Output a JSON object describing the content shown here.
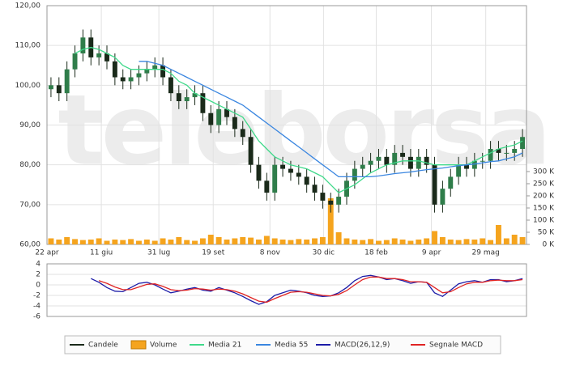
{
  "chart_data": [
    {
      "type": "candlestick",
      "watermark": "teleborsa",
      "xlim": [
        0,
        60
      ],
      "xticks": [
        {
          "value": 0,
          "label": "22 apr"
        },
        {
          "value": 6.8,
          "label": "11 giu"
        },
        {
          "value": 14,
          "label": "31 lug"
        },
        {
          "value": 20.8,
          "label": "19 set"
        },
        {
          "value": 27.9,
          "label": "8 nov"
        },
        {
          "value": 34.6,
          "label": "30 dic"
        },
        {
          "value": 41.2,
          "label": "18 feb"
        },
        {
          "value": 48.1,
          "label": "9 apr"
        },
        {
          "value": 54.9,
          "label": "29 mag"
        }
      ],
      "ylim": [
        60,
        120
      ],
      "yticks": [
        {
          "value": 60,
          "label": "60,00"
        },
        {
          "value": 70,
          "label": "70,00"
        },
        {
          "value": 80,
          "label": "80,00"
        },
        {
          "value": 90,
          "label": "90,00"
        },
        {
          "value": 100,
          "label": "100,00"
        },
        {
          "value": 110,
          "label": "110,00"
        },
        {
          "value": 120,
          "label": "120,00"
        }
      ],
      "y2lim": [
        0,
        983
      ],
      "y2ticks": [
        {
          "value": 0,
          "label": "0 K"
        },
        {
          "value": 50,
          "label": "50 K"
        },
        {
          "value": 100,
          "label": "100 K"
        },
        {
          "value": 150,
          "label": "150 K"
        },
        {
          "value": 200,
          "label": "200 K"
        },
        {
          "value": 250,
          "label": "250 K"
        },
        {
          "value": 300,
          "label": "300 K"
        }
      ],
      "grid": true,
      "series": [
        {
          "name": "Candele",
          "type": "candlestick",
          "color": "#1a2a1a",
          "open": [
            99,
            100,
            98,
            104,
            108,
            112,
            107,
            108,
            106,
            102,
            101,
            102,
            103,
            104,
            105,
            102,
            98,
            96,
            97,
            98,
            93,
            90,
            94,
            92,
            89,
            87,
            80,
            76,
            73,
            80,
            79,
            78,
            77,
            75,
            73,
            71,
            70,
            72,
            76,
            79,
            80,
            81,
            82,
            80,
            83,
            82,
            79,
            82,
            80,
            70,
            74,
            77,
            80,
            79,
            81,
            81,
            84,
            83,
            83,
            84
          ],
          "high": [
            102,
            102,
            106,
            110,
            114,
            114,
            110,
            110,
            108,
            104,
            104,
            105,
            106,
            107,
            107,
            104,
            100,
            99,
            100,
            100,
            95,
            96,
            96,
            94,
            91,
            89,
            82,
            78,
            82,
            82,
            81,
            80,
            79,
            77,
            75,
            73,
            74,
            78,
            81,
            82,
            83,
            84,
            84,
            85,
            85,
            84,
            84,
            84,
            82,
            76,
            79,
            82,
            82,
            83,
            83,
            86,
            86,
            85,
            86,
            89
          ],
          "low": [
            97,
            96,
            96,
            102,
            106,
            105,
            105,
            104,
            100,
            99,
            99,
            100,
            101,
            102,
            100,
            96,
            94,
            94,
            95,
            91,
            88,
            88,
            90,
            87,
            85,
            78,
            74,
            71,
            71,
            77,
            76,
            75,
            73,
            71,
            69,
            68,
            68,
            70,
            74,
            77,
            78,
            79,
            78,
            78,
            80,
            77,
            77,
            78,
            68,
            68,
            72,
            75,
            77,
            77,
            79,
            79,
            81,
            81,
            81,
            82
          ],
          "close": [
            100,
            98,
            104,
            108,
            112,
            107,
            108,
            106,
            102,
            101,
            102,
            103,
            104,
            105,
            102,
            98,
            96,
            97,
            98,
            93,
            90,
            94,
            92,
            89,
            87,
            80,
            76,
            73,
            80,
            79,
            78,
            77,
            75,
            73,
            71,
            70,
            72,
            76,
            79,
            80,
            81,
            82,
            80,
            83,
            82,
            79,
            82,
            80,
            70,
            74,
            77,
            80,
            79,
            81,
            81,
            84,
            83,
            83,
            84,
            87
          ]
        },
        {
          "name": "Volume",
          "type": "bar",
          "axis": "y2",
          "color": "#f5a41e",
          "values": [
            25,
            20,
            30,
            22,
            18,
            20,
            25,
            15,
            20,
            18,
            22,
            15,
            20,
            15,
            25,
            20,
            30,
            18,
            15,
            25,
            40,
            30,
            20,
            25,
            30,
            28,
            20,
            35,
            25,
            20,
            18,
            22,
            20,
            25,
            30,
            190,
            50,
            25,
            20,
            18,
            22,
            15,
            18,
            25,
            20,
            15,
            20,
            25,
            55,
            30,
            20,
            18,
            22,
            20,
            25,
            18,
            80,
            25,
            40,
            30
          ]
        },
        {
          "name": "Media 21",
          "type": "line",
          "color": "#3fd98a",
          "values": [
            null,
            null,
            null,
            108,
            109,
            109.5,
            109,
            108,
            107,
            105,
            104,
            104,
            104,
            104,
            104,
            103,
            101,
            100,
            98,
            97,
            96,
            95,
            94,
            93,
            92,
            89,
            86,
            84,
            82,
            81,
            80,
            79.5,
            79,
            78,
            77,
            75,
            73,
            74,
            75,
            76.5,
            78,
            79,
            80,
            80.5,
            81,
            81,
            81,
            80.5,
            80,
            80,
            80,
            80,
            80,
            81,
            82,
            83,
            84,
            84.5,
            85,
            86
          ]
        },
        {
          "name": "Media 55",
          "type": "line",
          "color": "#3a86e0",
          "values": [
            null,
            null,
            null,
            null,
            null,
            null,
            null,
            null,
            null,
            null,
            null,
            106,
            106,
            105.5,
            105,
            104,
            103,
            102,
            101,
            100,
            99,
            98,
            97,
            96,
            95,
            93.5,
            92,
            90.5,
            89,
            87.5,
            86,
            84.5,
            83,
            81.5,
            80,
            78.5,
            77,
            77,
            77,
            77,
            77,
            77.2,
            77.5,
            77.8,
            78,
            78.2,
            78.5,
            78.8,
            79,
            79.2,
            79.5,
            79.8,
            80,
            80.2,
            80.5,
            80.8,
            81,
            81.5,
            82,
            83
          ]
        }
      ]
    },
    {
      "type": "line",
      "xlim": [
        0,
        60
      ],
      "ylim": [
        -6,
        4
      ],
      "yticks": [
        4,
        2,
        0,
        -2,
        -4,
        -6
      ],
      "grid": true,
      "series": [
        {
          "name": "MACD(26,12,9)",
          "type": "line",
          "color": "#1c1ca8",
          "values": [
            null,
            null,
            null,
            null,
            null,
            1.2,
            0.5,
            -0.5,
            -1.2,
            -1.3,
            -0.5,
            0.3,
            0.5,
            0,
            -0.8,
            -1.5,
            -1.2,
            -0.8,
            -0.5,
            -1,
            -1.2,
            -0.5,
            -1,
            -1.5,
            -2.2,
            -3,
            -3.7,
            -3.2,
            -2,
            -1.5,
            -1,
            -1.2,
            -1.5,
            -2,
            -2.2,
            -2.1,
            -1.5,
            -0.5,
            0.8,
            1.6,
            1.8,
            1.5,
            1,
            1.2,
            0.8,
            0.3,
            0.6,
            0.5,
            -1.5,
            -2.2,
            -1,
            0.2,
            0.6,
            0.8,
            0.5,
            1,
            1,
            0.6,
            0.8,
            1.2
          ]
        },
        {
          "name": "Segnale MACD",
          "type": "line",
          "color": "#e02424",
          "values": [
            null,
            null,
            null,
            null,
            null,
            null,
            0.8,
            0.3,
            -0.4,
            -0.9,
            -0.9,
            -0.4,
            0.1,
            0.2,
            -0.3,
            -0.9,
            -1.1,
            -1,
            -0.7,
            -0.8,
            -1,
            -0.8,
            -0.9,
            -1.2,
            -1.7,
            -2.4,
            -3.1,
            -3.3,
            -2.6,
            -2,
            -1.4,
            -1.3,
            -1.4,
            -1.7,
            -2,
            -2.1,
            -1.8,
            -1.1,
            0,
            1,
            1.5,
            1.5,
            1.2,
            1.2,
            1,
            0.6,
            0.6,
            0.5,
            -0.5,
            -1.5,
            -1.3,
            -0.5,
            0.2,
            0.5,
            0.5,
            0.8,
            0.9,
            0.8,
            0.8,
            1.0
          ]
        }
      ]
    }
  ]
}
